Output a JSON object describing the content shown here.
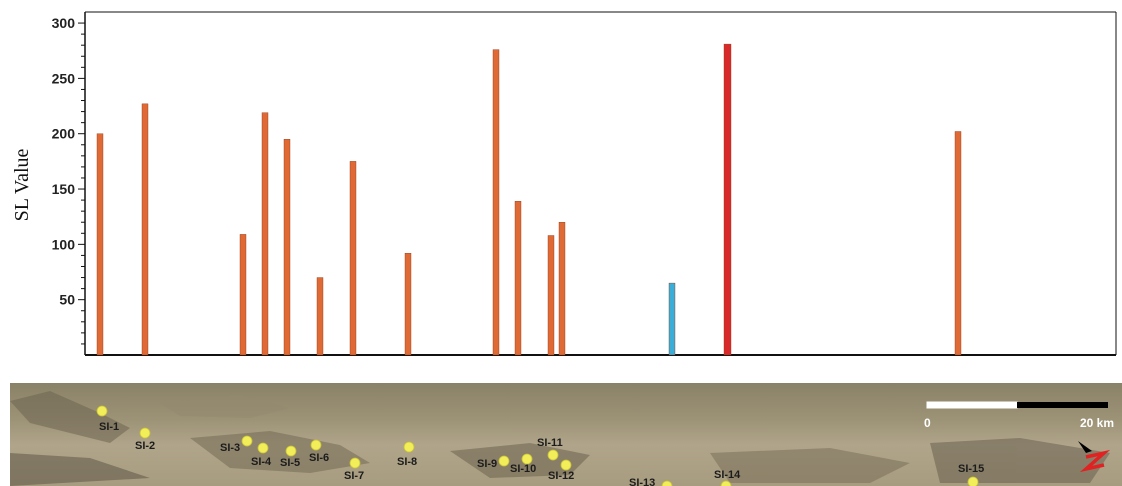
{
  "chart_data": {
    "type": "bar",
    "ylabel": "SL Value",
    "xlabel": "",
    "title": "",
    "ylim": [
      0,
      310
    ],
    "yticks": [
      50,
      100,
      150,
      200,
      250,
      300
    ],
    "grid": false,
    "bars": [
      {
        "x": 5,
        "value": 200,
        "color": "#e06a36"
      },
      {
        "x": 50,
        "value": 227,
        "color": "#e06a36"
      },
      {
        "x": 148,
        "value": 109,
        "color": "#e06a36"
      },
      {
        "x": 170,
        "value": 219,
        "color": "#e06a36"
      },
      {
        "x": 192,
        "value": 195,
        "color": "#e06a36"
      },
      {
        "x": 225,
        "value": 70,
        "color": "#e06a36"
      },
      {
        "x": 258,
        "value": 175,
        "color": "#e06a36"
      },
      {
        "x": 313,
        "value": 92,
        "color": "#e06a36"
      },
      {
        "x": 401,
        "value": 276,
        "color": "#e06a36"
      },
      {
        "x": 423,
        "value": 139,
        "color": "#e06a36"
      },
      {
        "x": 456,
        "value": 108,
        "color": "#e06a36"
      },
      {
        "x": 467,
        "value": 120,
        "color": "#e06a36"
      },
      {
        "x": 577,
        "value": 65,
        "color": "#3aaed8"
      },
      {
        "x": 632,
        "value": 281,
        "color": "#d82a2a"
      },
      {
        "x": 863,
        "value": 202,
        "color": "#e06a36"
      }
    ]
  },
  "map": {
    "sites": [
      {
        "label": "SI-1"
      },
      {
        "label": "SI-2"
      },
      {
        "label": "SI-3"
      },
      {
        "label": "SI-4"
      },
      {
        "label": "SI-5"
      },
      {
        "label": "SI-6"
      },
      {
        "label": "SI-7"
      },
      {
        "label": "SI-8"
      },
      {
        "label": "SI-9"
      },
      {
        "label": "SI-10"
      },
      {
        "label": "SI-11"
      },
      {
        "label": "SI-12"
      },
      {
        "label": "SI-13"
      },
      {
        "label": "SI-14"
      },
      {
        "label": "SI-15"
      }
    ],
    "scale_start": "0",
    "scale_end": "20 km",
    "north_arrow_icon": "north-arrow-icon",
    "marker_color": "#f2ee5a"
  }
}
